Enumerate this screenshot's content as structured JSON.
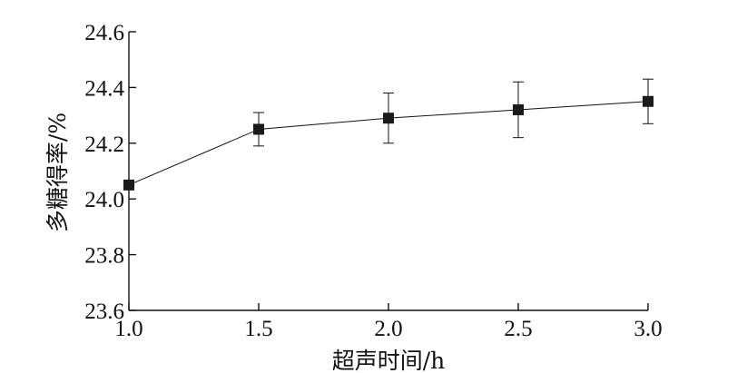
{
  "chart_data": {
    "type": "line",
    "title": "",
    "xlabel": "超声时间/h",
    "ylabel": "多糖得率/%",
    "xlim": [
      1.0,
      3.0
    ],
    "ylim": [
      23.6,
      24.6
    ],
    "x_ticks": [
      "1.0",
      "1.5",
      "2.0",
      "2.5",
      "3.0"
    ],
    "y_ticks": [
      "23.6",
      "23.8",
      "24.0",
      "24.2",
      "24.4",
      "24.6"
    ],
    "grid": false,
    "legend": "none",
    "series": [
      {
        "x": [
          1.0,
          1.5,
          2.0,
          2.5,
          3.0
        ],
        "y": [
          24.05,
          24.25,
          24.29,
          24.32,
          24.35
        ],
        "error": [
          0.0,
          0.06,
          0.09,
          0.1,
          0.08
        ],
        "marker": "square",
        "color": "#1a1a1a"
      }
    ]
  }
}
